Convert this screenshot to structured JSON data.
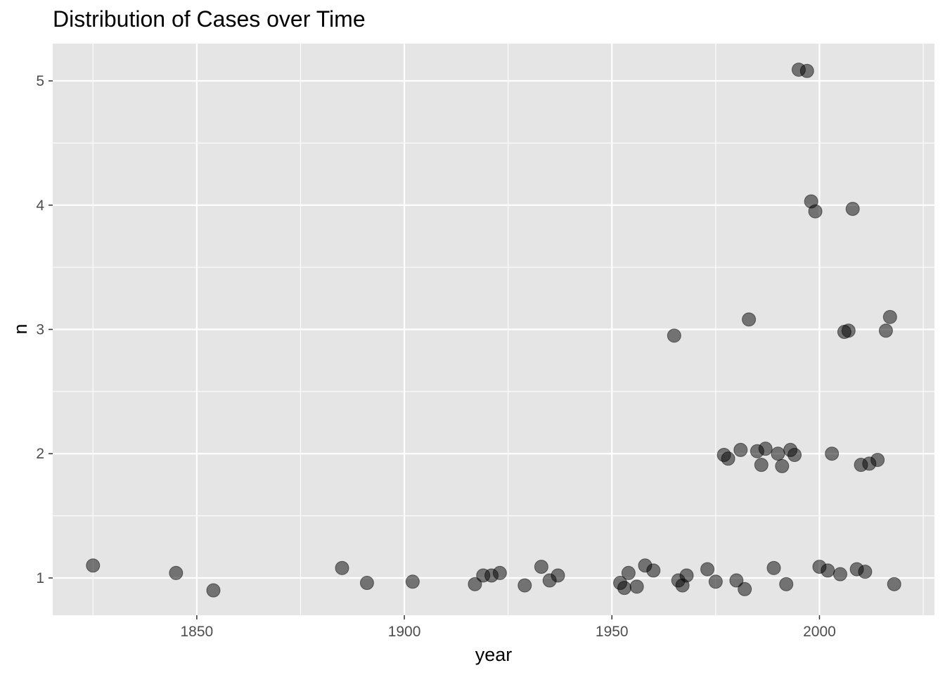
{
  "chart_data": {
    "type": "scatter",
    "title": "Distribution of Cases over Time",
    "xlabel": "year",
    "ylabel": "n",
    "xlim": [
      1815.3,
      2027.7
    ],
    "ylim": [
      0.7,
      5.3
    ],
    "x_ticks": [
      1850,
      1900,
      1950,
      2000
    ],
    "x_tick_labels": [
      "1850",
      "1900",
      "1950",
      "2000"
    ],
    "y_ticks": [
      1,
      2,
      3,
      4,
      5
    ],
    "y_tick_labels": [
      "1",
      "2",
      "3",
      "4",
      "5"
    ],
    "grid": true,
    "legend": "none",
    "colors": {
      "panel": "#e5e5e5",
      "grid": "#ffffff",
      "point": "#000000",
      "point_opacity": 0.5
    },
    "points": [
      {
        "x": 1825,
        "y": 1.1
      },
      {
        "x": 1845,
        "y": 1.04
      },
      {
        "x": 1854,
        "y": 0.9
      },
      {
        "x": 1885,
        "y": 1.08
      },
      {
        "x": 1891,
        "y": 0.96
      },
      {
        "x": 1902,
        "y": 0.97
      },
      {
        "x": 1917,
        "y": 0.95
      },
      {
        "x": 1919,
        "y": 1.02
      },
      {
        "x": 1921,
        "y": 1.02
      },
      {
        "x": 1923,
        "y": 1.04
      },
      {
        "x": 1929,
        "y": 0.94
      },
      {
        "x": 1933,
        "y": 1.09
      },
      {
        "x": 1935,
        "y": 0.98
      },
      {
        "x": 1937,
        "y": 1.02
      },
      {
        "x": 1952,
        "y": 0.96
      },
      {
        "x": 1953,
        "y": 0.92
      },
      {
        "x": 1954,
        "y": 1.04
      },
      {
        "x": 1956,
        "y": 0.93
      },
      {
        "x": 1958,
        "y": 1.1
      },
      {
        "x": 1960,
        "y": 1.06
      },
      {
        "x": 1965,
        "y": 2.95
      },
      {
        "x": 1966,
        "y": 0.98
      },
      {
        "x": 1967,
        "y": 0.94
      },
      {
        "x": 1968,
        "y": 1.02
      },
      {
        "x": 1973,
        "y": 1.07
      },
      {
        "x": 1975,
        "y": 0.97
      },
      {
        "x": 1977,
        "y": 1.99
      },
      {
        "x": 1978,
        "y": 1.96
      },
      {
        "x": 1980,
        "y": 0.98
      },
      {
        "x": 1981,
        "y": 2.03
      },
      {
        "x": 1982,
        "y": 0.91
      },
      {
        "x": 1983,
        "y": 3.08
      },
      {
        "x": 1985,
        "y": 2.02
      },
      {
        "x": 1986,
        "y": 1.91
      },
      {
        "x": 1987,
        "y": 2.04
      },
      {
        "x": 1989,
        "y": 1.08
      },
      {
        "x": 1990,
        "y": 2.0
      },
      {
        "x": 1991,
        "y": 1.9
      },
      {
        "x": 1992,
        "y": 0.95
      },
      {
        "x": 1993,
        "y": 2.03
      },
      {
        "x": 1994,
        "y": 1.99
      },
      {
        "x": 1995,
        "y": 5.09
      },
      {
        "x": 1997,
        "y": 5.08
      },
      {
        "x": 1998,
        "y": 4.03
      },
      {
        "x": 1999,
        "y": 3.95
      },
      {
        "x": 2000,
        "y": 1.09
      },
      {
        "x": 2002,
        "y": 1.06
      },
      {
        "x": 2003,
        "y": 2.0
      },
      {
        "x": 2005,
        "y": 1.03
      },
      {
        "x": 2006,
        "y": 2.98
      },
      {
        "x": 2007,
        "y": 2.99
      },
      {
        "x": 2008,
        "y": 3.97
      },
      {
        "x": 2009,
        "y": 1.07
      },
      {
        "x": 2010,
        "y": 1.91
      },
      {
        "x": 2011,
        "y": 1.05
      },
      {
        "x": 2012,
        "y": 1.92
      },
      {
        "x": 2014,
        "y": 1.95
      },
      {
        "x": 2016,
        "y": 2.99
      },
      {
        "x": 2017,
        "y": 3.1
      },
      {
        "x": 2018,
        "y": 0.95
      }
    ]
  }
}
